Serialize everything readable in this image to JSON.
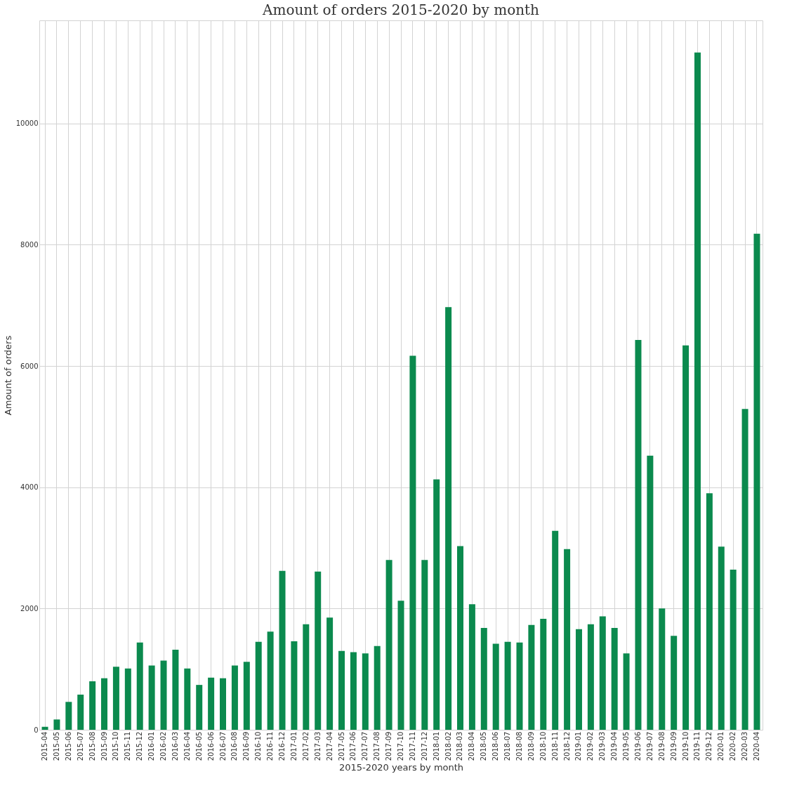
{
  "chart_data": {
    "type": "bar",
    "title": "Amount of orders 2015-2020 by month",
    "xlabel": "2015-2020 years by month",
    "ylabel": "Amount of orders",
    "categories": [
      "2015-04",
      "2015-05",
      "2015-06",
      "2015-07",
      "2015-08",
      "2015-09",
      "2015-10",
      "2015-11",
      "2015-12",
      "2016-01",
      "2016-02",
      "2016-03",
      "2016-04",
      "2016-05",
      "2016-06",
      "2016-07",
      "2016-08",
      "2016-09",
      "2016-10",
      "2016-11",
      "2016-12",
      "2017-01",
      "2017-02",
      "2017-03",
      "2017-04",
      "2017-05",
      "2017-06",
      "2017-07",
      "2017-08",
      "2017-09",
      "2017-10",
      "2017-11",
      "2017-12",
      "2018-01",
      "2018-02",
      "2018-03",
      "2018-04",
      "2018-05",
      "2018-06",
      "2018-07",
      "2018-08",
      "2018-09",
      "2018-10",
      "2018-11",
      "2018-12",
      "2019-01",
      "2019-02",
      "2019-03",
      "2019-04",
      "2019-05",
      "2019-06",
      "2019-07",
      "2019-08",
      "2019-09",
      "2019-10",
      "2019-11",
      "2019-12",
      "2020-01",
      "2020-02",
      "2020-03",
      "2020-04"
    ],
    "series": [
      {
        "color": "#0b8a4e",
        "values": [
          50,
          170,
          460,
          580,
          800,
          850,
          1040,
          1010,
          1440,
          1060,
          1140,
          1320,
          1010,
          740,
          860,
          850,
          1060,
          1120,
          1450,
          1620,
          2620,
          1460,
          1740,
          2610,
          1850,
          1300,
          1280,
          1260,
          1380,
          2800,
          2130,
          6170,
          2800,
          4130,
          6970,
          3030,
          2070,
          1680,
          1420,
          1450,
          1440,
          1730,
          1830,
          3280,
          2980,
          1660,
          1740,
          1870,
          1680,
          1260,
          6430,
          4520,
          2000,
          1550,
          6340,
          11170,
          3900,
          3020,
          2640,
          5290,
          8180
        ]
      }
    ],
    "ylim": [
      0,
      11700
    ],
    "yticks": [
      0,
      2000,
      4000,
      6000,
      8000,
      10000
    ],
    "grid": true
  }
}
